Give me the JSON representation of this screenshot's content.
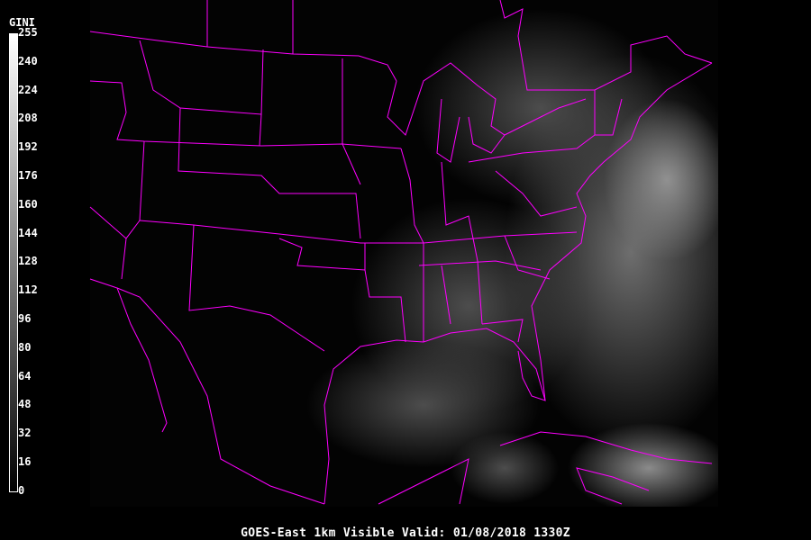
{
  "colorbar": {
    "title": "GINI",
    "ticks": [
      "255",
      "240",
      "224",
      "208",
      "192",
      "176",
      "160",
      "144",
      "128",
      "112",
      "96",
      "80",
      "64",
      "48",
      "32",
      "16",
      "0"
    ],
    "gradient": [
      "#ffffff",
      "#000000"
    ]
  },
  "caption": "GOES-East 1km Visible  Valid: 01/08/2018 1330Z",
  "colors": {
    "boundaries": "#ff00ff",
    "background": "#000000",
    "internal_lines": "#a0a0a0"
  }
}
